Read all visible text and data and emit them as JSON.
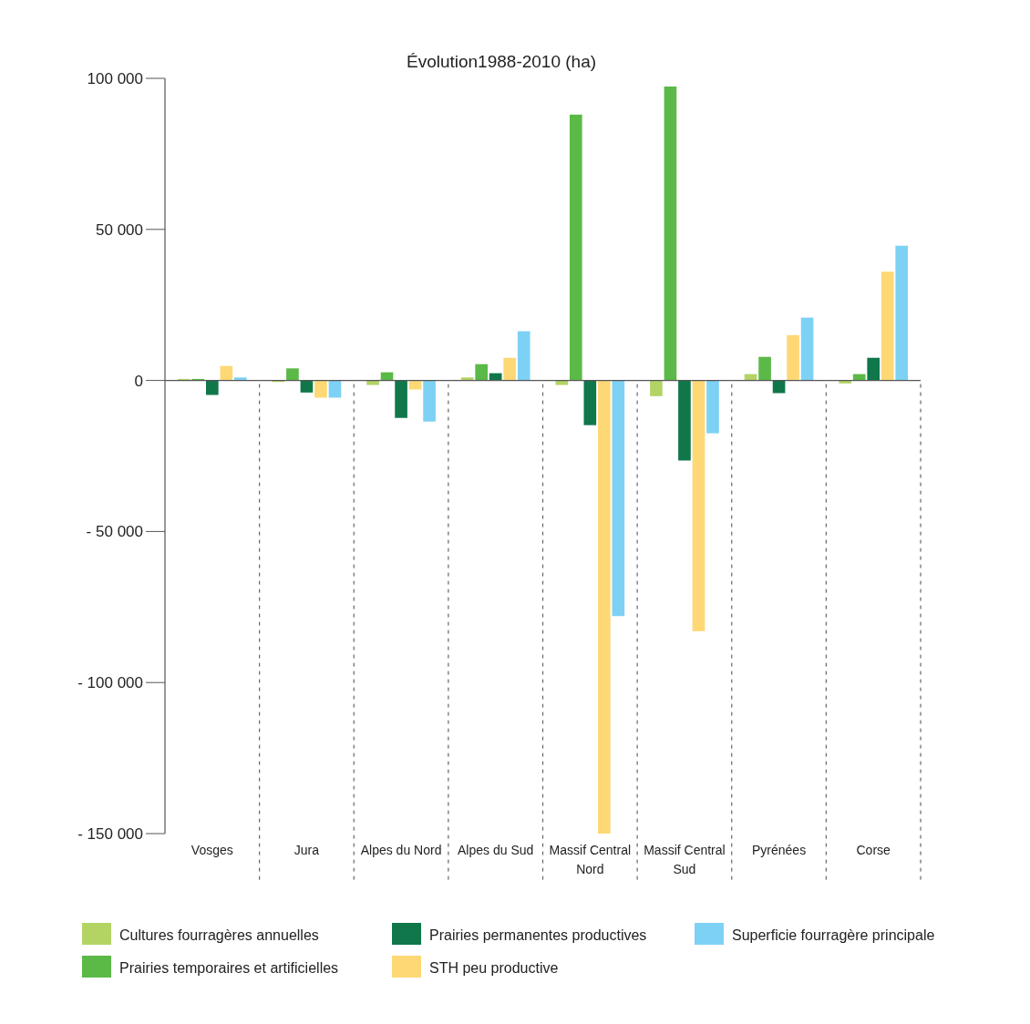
{
  "chart_data": {
    "type": "bar",
    "title": "Évolution1988-2010 (ha)",
    "categories": [
      "Vosges",
      "Jura",
      "Alpes du Nord",
      "Alpes du Sud",
      "Massif Central Nord",
      "Massif Central Sud",
      "Pyrénées",
      "Corse"
    ],
    "series": [
      {
        "name": "Cultures fourragères annuelles",
        "color": "#b3d465",
        "values": [
          500,
          -500,
          -1500,
          1000,
          -1500,
          -5200,
          2100,
          -1000
        ]
      },
      {
        "name": "Prairies temporaires et artificielles",
        "color": "#5bb947",
        "values": [
          500,
          4000,
          2700,
          5400,
          88000,
          97300,
          7800,
          2100
        ]
      },
      {
        "name": "Prairies permanentes productives",
        "color": "#10774a",
        "values": [
          -4800,
          -4000,
          -12400,
          2400,
          -14800,
          -26500,
          -4200,
          7500
        ]
      },
      {
        "name": "STH peu productive",
        "color": "#fdd875",
        "values": [
          4800,
          -5700,
          -3000,
          7500,
          -150000,
          -83000,
          15000,
          36000
        ]
      },
      {
        "name": "Superficie fourragère principale",
        "color": "#7dd1f5",
        "values": [
          1000,
          -5700,
          -13600,
          16300,
          -78000,
          -17500,
          20800,
          44600
        ]
      }
    ],
    "ylim": [
      -150000,
      100000
    ],
    "yticks": [
      {
        "value": -150000,
        "label": "- 150 000"
      },
      {
        "value": -100000,
        "label": "- 100 000"
      },
      {
        "value": -50000,
        "label": "- 50 000"
      },
      0,
      {
        "value": 50000,
        "label": "50 000"
      },
      {
        "value": 100000,
        "label": "100 000"
      }
    ],
    "legend": "bottom"
  }
}
